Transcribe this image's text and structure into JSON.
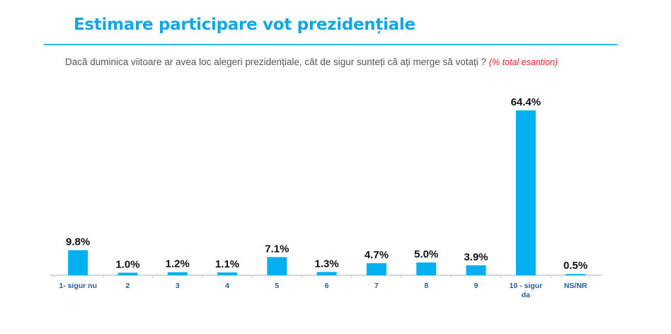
{
  "header": {
    "title": "Estimare participare vot prezidențiale",
    "question": "Dacă duminica viitoare ar avea loc alegeri prezidențiale, cât de sigur sunteți că ați merge să votați ?",
    "note": "(% total esantion)"
  },
  "colors": {
    "bar": "#00b0f0",
    "title": "#12a7e3",
    "axis_label": "#1f5f9a",
    "note": "#e8202a"
  },
  "chart_data": {
    "type": "bar",
    "title": "",
    "xlabel": "",
    "ylabel": "",
    "ylim": [
      0,
      64.4
    ],
    "grid": false,
    "categories": [
      "1- sigur nu",
      "2",
      "3",
      "4",
      "5",
      "6",
      "7",
      "8",
      "9",
      "10 - sigur da",
      "NS/NR"
    ],
    "values": [
      9.8,
      1.0,
      1.2,
      1.1,
      7.1,
      1.3,
      4.7,
      5.0,
      3.9,
      64.4,
      0.5
    ],
    "data_labels": [
      "9.8%",
      "1.0%",
      "1.2%",
      "1.1%",
      "7.1%",
      "1.3%",
      "4.7%",
      "5.0%",
      "3.9%",
      "64.4%",
      "0.5%"
    ]
  }
}
